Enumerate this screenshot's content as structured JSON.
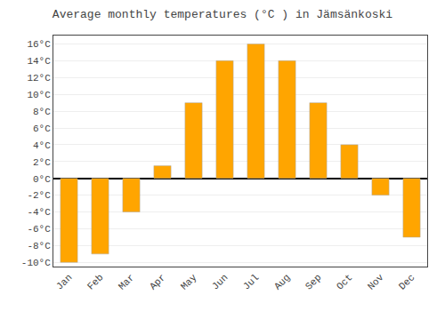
{
  "chart_data": {
    "type": "bar",
    "title": "Average monthly temperatures (°C ) in Jämsänkoski",
    "categories": [
      "Jan",
      "Feb",
      "Mar",
      "Apr",
      "May",
      "Jun",
      "Jul",
      "Aug",
      "Sep",
      "Oct",
      "Nov",
      "Dec"
    ],
    "values": [
      -10,
      -9,
      -4,
      1.5,
      9,
      14,
      16,
      14,
      9,
      4,
      -2,
      -7
    ],
    "color": "#FFA500",
    "ylim": [
      -10.5,
      17
    ],
    "yticks": [
      {
        "value": -10,
        "label": "-10°C"
      },
      {
        "value": -8,
        "label": "-8°C"
      },
      {
        "value": -6,
        "label": "-6°C"
      },
      {
        "value": -4,
        "label": "-4°C"
      },
      {
        "value": -2,
        "label": "-2°C"
      },
      {
        "value": 0,
        "label": "0°C"
      },
      {
        "value": 2,
        "label": "2°C"
      },
      {
        "value": 4,
        "label": "4°C"
      },
      {
        "value": 6,
        "label": "6°C"
      },
      {
        "value": 8,
        "label": "8°C"
      },
      {
        "value": 10,
        "label": "10°C"
      },
      {
        "value": 12,
        "label": "12°C"
      },
      {
        "value": 14,
        "label": "14°C"
      },
      {
        "value": 16,
        "label": "16°C"
      }
    ],
    "grid": true
  }
}
